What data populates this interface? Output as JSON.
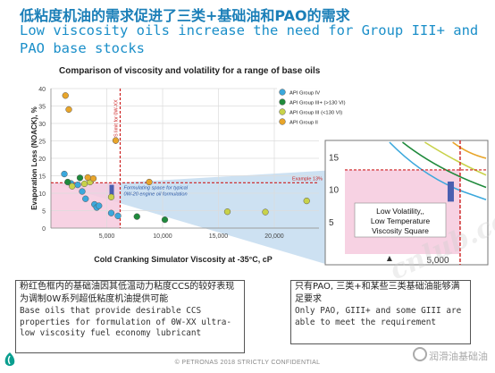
{
  "slide": {
    "title_cn": "低粘度机油的需求促进了三类+基础油和PAO的需求",
    "title_en": "Low viscosity oils increase the need for Group III+ and PAO base stocks",
    "footer": "© PETRONAS 2018 STRICTLY CONFIDENTIAL",
    "watermark": "润滑油基础油",
    "watermark_big": "cnlub.com"
  },
  "callouts": {
    "left_cn": "粉红色框内的基础油因其低温动力粘度CCS的较好表现为调制0W系列超低粘度机油提供可能",
    "left_en": "Base oils that provide desirable CCS properties for formulation of 0W-XX ultra-low viscosity fuel economy lubricant",
    "right_cn": "只有PAO, 三类+和某些三类基础油能够满足要求",
    "right_en": "Only PAO, GIII+ and some GIII are able to meet the requirement"
  },
  "colors": {
    "group_iv": "#3ba8dc",
    "group_iii_plus": "#1f8a3c",
    "group_iii": "#c8d24a",
    "group_ii": "#e8a52a",
    "pink_zone": "#f6cde0",
    "blue_zone": "#bcd7ee",
    "limit_line": "#cc1f1f",
    "title_blue": "#1b7fb8"
  },
  "chart_data": {
    "type": "scatter",
    "title": "Comparison of viscosity and volatility for a range of base oils",
    "xlabel": "Cold Cranking Simulator Viscosity at -35°C, cP",
    "ylabel": "Evaporation Loss (NOACK), %",
    "xlim": [
      0,
      24000
    ],
    "ylim": [
      0,
      40
    ],
    "xticks": [
      "5,000",
      "10,000",
      "15,000",
      "20,000"
    ],
    "xtick_values": [
      5000,
      10000,
      15000,
      20000
    ],
    "yticks": [
      "0",
      "5",
      "10",
      "15",
      "20",
      "25",
      "30",
      "35",
      "40"
    ],
    "ytick_values": [
      0,
      5,
      10,
      15,
      20,
      25,
      30,
      35,
      40
    ],
    "grid": true,
    "legend_position": "top-right",
    "ccs_limit_x": 6200,
    "ccs_limit_label": "CCS limit for 0W-XX",
    "noack_limit_y": 13,
    "noack_limit_label": "Example 13%",
    "formulating_label": "Formulating space for typical 0W-20 engine oil formulation",
    "series": [
      {
        "name": "API Group IV",
        "color": "#3ba8dc",
        "points": [
          [
            1200,
            15.5
          ],
          [
            1800,
            12.8
          ],
          [
            2400,
            12.4
          ],
          [
            2800,
            10.5
          ],
          [
            3100,
            8.4
          ],
          [
            3900,
            6.8
          ],
          [
            4100,
            5.9
          ],
          [
            4300,
            6.4
          ],
          [
            5400,
            4.3
          ],
          [
            6000,
            3.5
          ]
        ]
      },
      {
        "name": "API Group III+ (>130 VI)",
        "color": "#1f8a3c",
        "points": [
          [
            1500,
            13.2
          ],
          [
            2600,
            14.4
          ],
          [
            7700,
            3.3
          ],
          [
            10200,
            2.4
          ]
        ]
      },
      {
        "name": "API Group III (<130 VI)",
        "color": "#c8d24a",
        "points": [
          [
            1900,
            12.0
          ],
          [
            3000,
            12.7
          ],
          [
            3500,
            13.2
          ],
          [
            5400,
            8.9
          ],
          [
            15800,
            4.7
          ],
          [
            19200,
            4.6
          ],
          [
            22900,
            7.8
          ]
        ]
      },
      {
        "name": "API Group II",
        "color": "#e8a52a",
        "points": [
          [
            1300,
            38.0
          ],
          [
            1600,
            34.0
          ],
          [
            3300,
            14.5
          ],
          [
            3800,
            14.2
          ],
          [
            5800,
            25.1
          ],
          [
            8800,
            13.2
          ]
        ]
      }
    ],
    "inset": {
      "yticks": [
        "5",
        "10",
        "15"
      ],
      "ytick_values": [
        5,
        10,
        15
      ],
      "xticks": [
        "5,000"
      ],
      "xtick_values": [
        5000
      ],
      "xlim": [
        0,
        7500
      ],
      "ylim": [
        0,
        17
      ],
      "label": "Low Volatility, Low Temperature Viscosity Square"
    }
  }
}
